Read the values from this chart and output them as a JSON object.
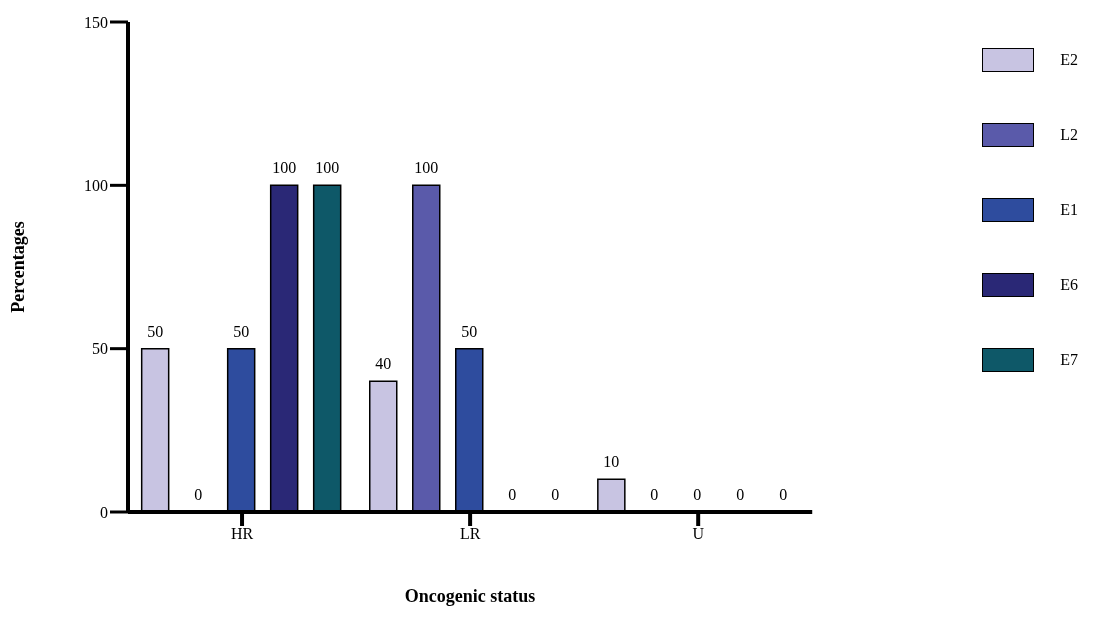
{
  "chart_data": {
    "type": "bar",
    "xlabel": "Oncogenic status",
    "ylabel": "Percentages",
    "categories": [
      "HR",
      "LR",
      "U"
    ],
    "series": [
      {
        "name": "E2",
        "color": "#c8c4e2",
        "values": [
          50,
          40,
          10
        ]
      },
      {
        "name": "L2",
        "color": "#5a5aaa",
        "values": [
          0,
          100,
          0
        ]
      },
      {
        "name": "E1",
        "color": "#2e4c9e",
        "values": [
          50,
          50,
          0
        ]
      },
      {
        "name": "E6",
        "color": "#2a2876",
        "values": [
          100,
          0,
          0
        ]
      },
      {
        "name": "E7",
        "color": "#0e5868",
        "values": [
          100,
          0,
          0
        ]
      }
    ],
    "ylim": [
      0,
      150
    ],
    "yticks": [
      0,
      50,
      100,
      150
    ],
    "grid": false,
    "legend": "top right",
    "data_labels": true
  }
}
